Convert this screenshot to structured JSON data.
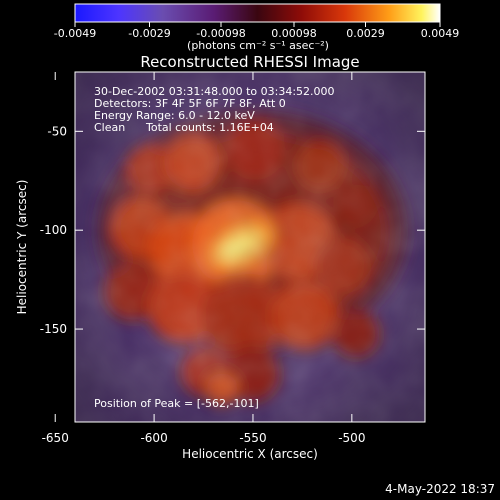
{
  "colorbar": {
    "tick_labels": [
      "-0.0049",
      "-0.0029",
      "-0.00098",
      "0.00098",
      "0.0029",
      "0.0049"
    ],
    "unit_label": "(photons cm⁻² s⁻¹ asec⁻²)"
  },
  "chart_data": {
    "type": "heatmap",
    "title": "Reconstructed RHESSI Image",
    "xlabel": "Heliocentric X (arcsec)",
    "ylabel": "Heliocentric Y (arcsec)",
    "xlim": [
      -640,
      -463
    ],
    "ylim": [
      -197,
      -20
    ],
    "x_ticks": [
      -650,
      -600,
      -550,
      -500
    ],
    "x_tick_labels": [
      "-650",
      "-600",
      "-550",
      "-500"
    ],
    "y_ticks": [
      -50,
      -100,
      -150
    ],
    "y_tick_labels": [
      "-50",
      "-100",
      "-150"
    ],
    "color_range": [
      -0.0049,
      0.0049
    ],
    "colormap": "rhessi-rainbow-hot",
    "peak_position": [
      -562,
      -101
    ],
    "annotations": [
      "30-Dec-2002 03:31:48.000 to 03:34:52.000",
      "Detectors: 3F 4F 5F 6F 7F 8F, Att 0",
      "Energy Range: 6.0 - 12.0 keV",
      "Clean",
      "Total counts: 1.16E+04",
      "Position of Peak = [-562,-101]"
    ]
  },
  "footer": {
    "timestamp": "4-May-2022 18:37"
  }
}
